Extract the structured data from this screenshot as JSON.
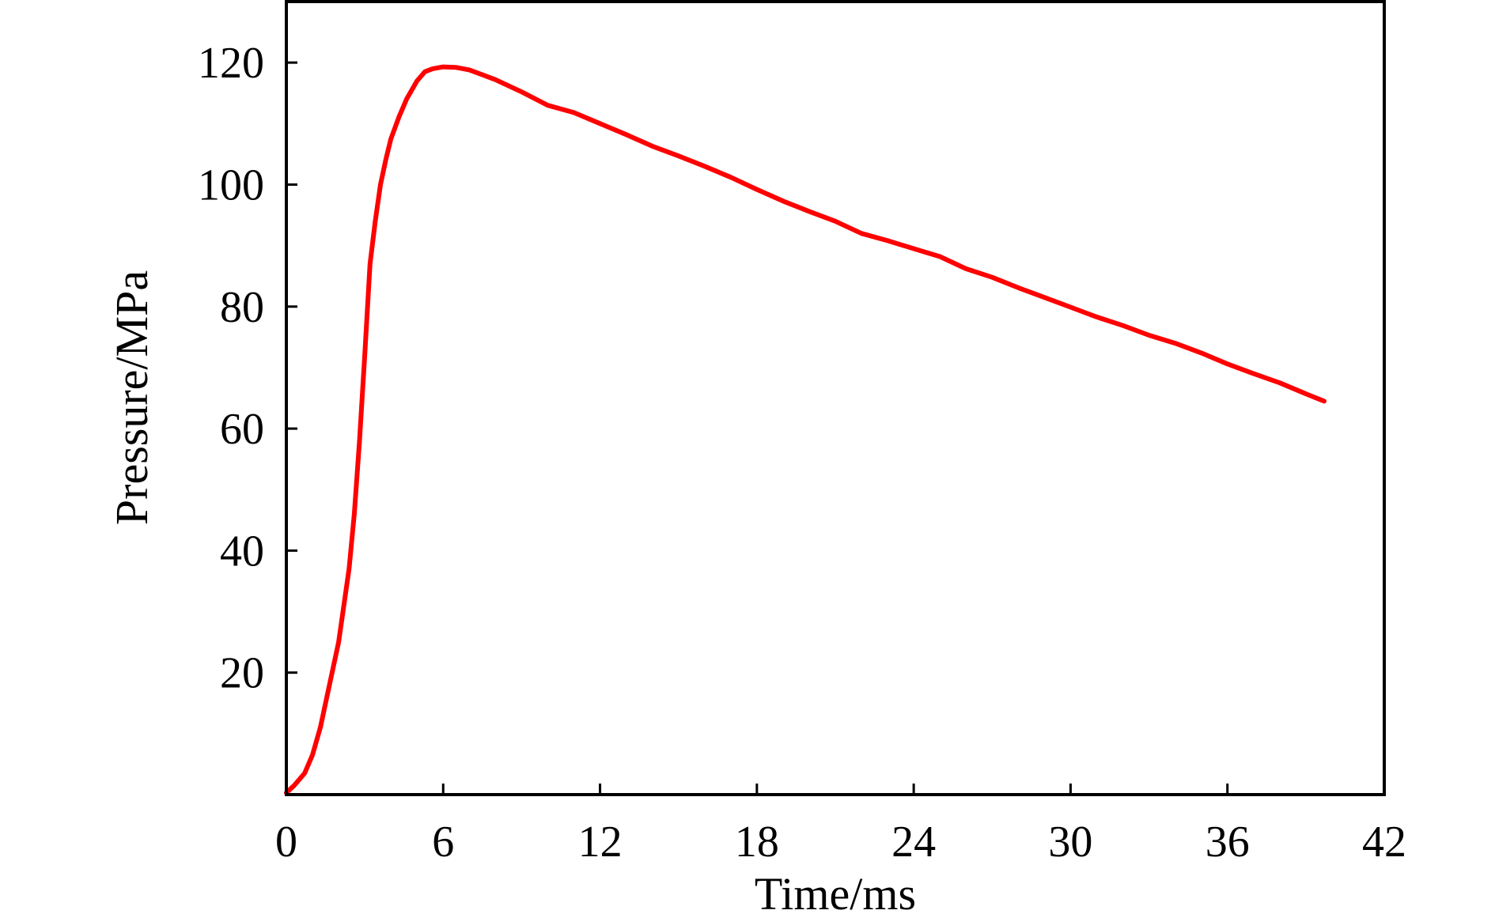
{
  "chart_data": {
    "type": "line",
    "xlabel": "Time/ms",
    "ylabel": "Pressure/MPa",
    "xlim": [
      0,
      42
    ],
    "ylim": [
      0,
      130
    ],
    "xticks": [
      0,
      6,
      12,
      18,
      24,
      30,
      36,
      42
    ],
    "yticks": [
      20,
      40,
      60,
      80,
      100,
      120
    ],
    "grid": false,
    "colors": {
      "series": "#ff0000",
      "axes": "#000000"
    },
    "series": [
      {
        "x": [
          0,
          0.3,
          0.7,
          1.0,
          1.3,
          1.6,
          2.0,
          2.4,
          2.6,
          2.8,
          3.0,
          3.2,
          3.4,
          3.6,
          3.8,
          4.0,
          4.3,
          4.6,
          5.0,
          5.3,
          5.6,
          6.0,
          6.5,
          7.0,
          7.5,
          8.0,
          9.0,
          10.0,
          11.0,
          12.0,
          13.0,
          14.0,
          15.0,
          16.0,
          17.0,
          18.0,
          19.0,
          20.0,
          21.0,
          22.0,
          23.0,
          24.0,
          25.0,
          26.0,
          27.0,
          28.0,
          29.0,
          30.0,
          31.0,
          32.0,
          33.0,
          34.0,
          35.0,
          36.0,
          37.0,
          38.0,
          39.0,
          39.7
        ],
        "y": [
          0.3,
          1.5,
          3.5,
          6.5,
          11.0,
          17.0,
          25.0,
          37.0,
          46.0,
          58.0,
          72.0,
          87.0,
          94.0,
          100.0,
          104.0,
          107.5,
          111.0,
          114.0,
          117.0,
          118.5,
          119.0,
          119.3,
          119.2,
          118.8,
          118.0,
          117.2,
          115.2,
          113.0,
          111.8,
          110.0,
          108.2,
          106.3,
          104.7,
          103.0,
          101.2,
          99.2,
          97.3,
          95.6,
          94.0,
          92.0,
          90.8,
          89.5,
          88.2,
          86.2,
          84.8,
          83.1,
          81.5,
          79.9,
          78.3,
          76.9,
          75.3,
          74.0,
          72.4,
          70.6,
          69.0,
          67.5,
          65.7,
          64.5
        ]
      }
    ]
  }
}
